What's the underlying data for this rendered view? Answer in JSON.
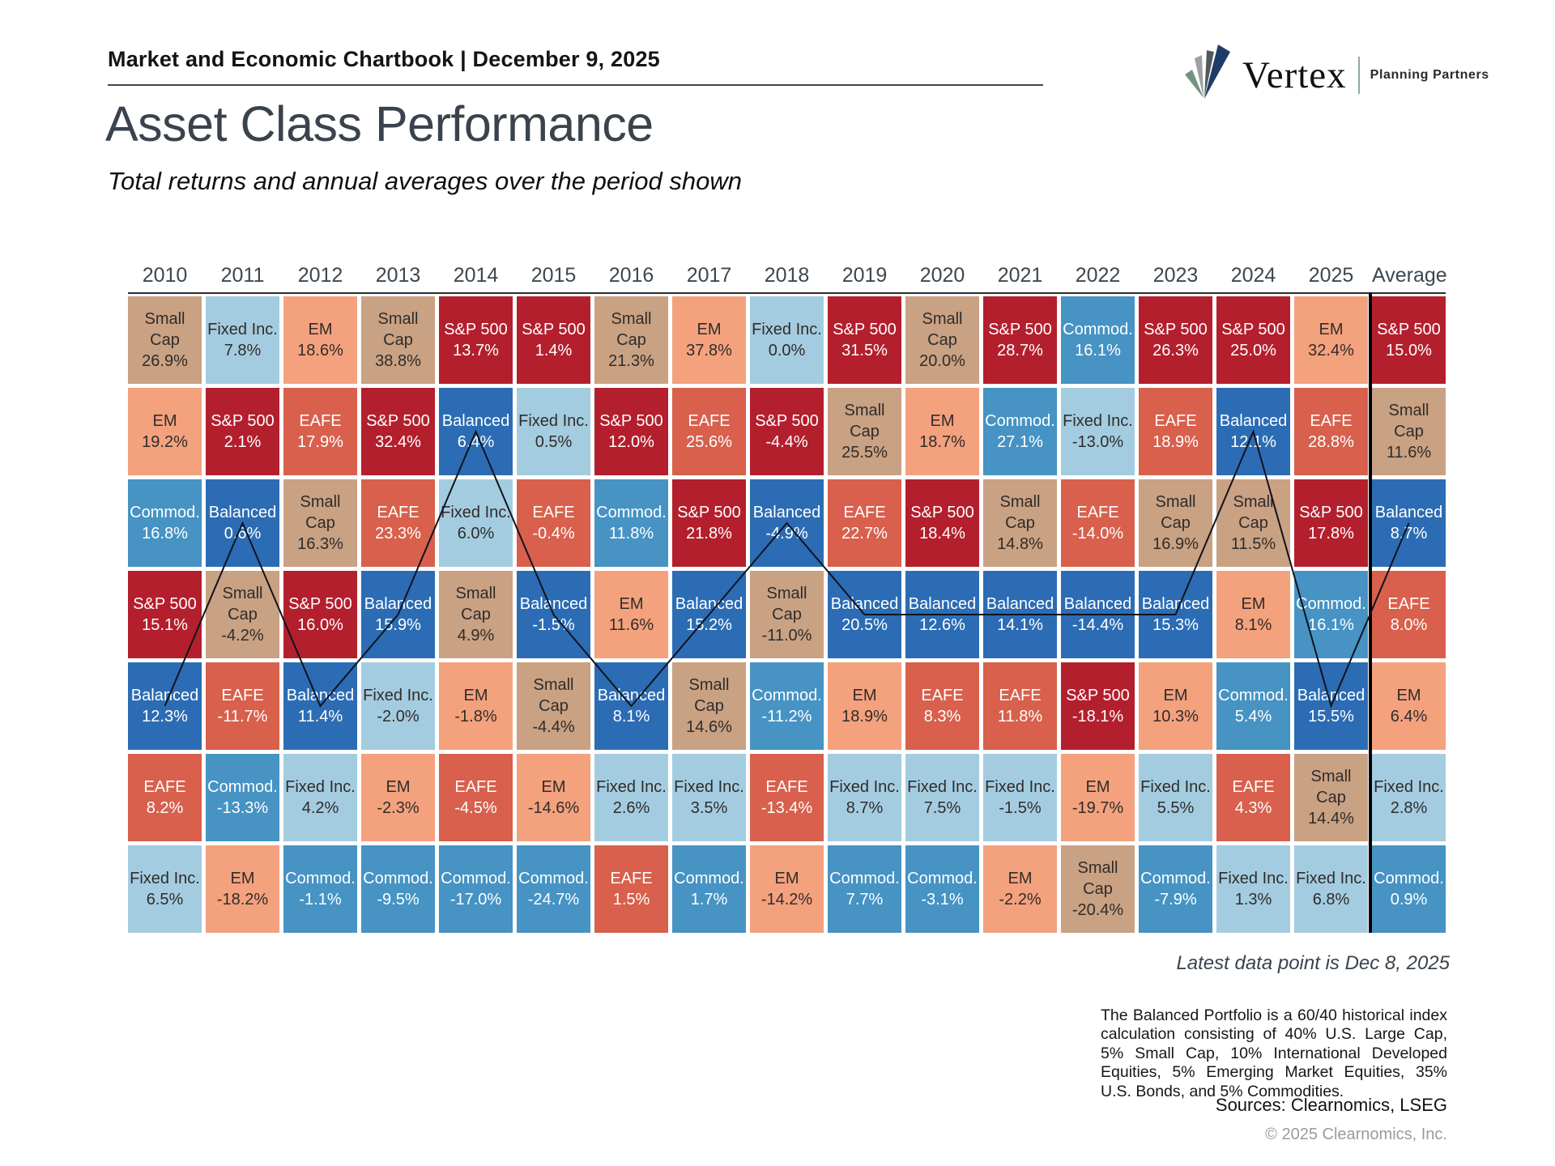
{
  "header": {
    "chartbook_title": "Market and Economic Chartbook | December 9, 2025"
  },
  "logo": {
    "brand": "Vertex",
    "tagline": "Planning Partners"
  },
  "page": {
    "title": "Asset Class Performance",
    "subtitle": "Total returns and annual averages over the period shown"
  },
  "chart_data": {
    "type": "table",
    "description": "Asset class total returns ranked best-to-worst per year, with a line tracing the Balanced portfolio",
    "columns": [
      "2010",
      "2011",
      "2012",
      "2013",
      "2014",
      "2015",
      "2016",
      "2017",
      "2018",
      "2019",
      "2020",
      "2021",
      "2022",
      "2023",
      "2024",
      "2025",
      "Average"
    ],
    "trace_asset": "Balanced",
    "asset_styles": {
      "S&P 500": {
        "bg": "#b41f2d",
        "text": "#ffffff"
      },
      "EAFE": {
        "bg": "#d8604c",
        "text": "#ffffff"
      },
      "EM": {
        "bg": "#f4a17e",
        "text": "#2f2d2a"
      },
      "Small Cap": {
        "bg": "#c9a183",
        "text": "#2f2d2a"
      },
      "Fixed Inc.": {
        "bg": "#a4cce1",
        "text": "#2f2d2a"
      },
      "Commod.": {
        "bg": "#4693c4",
        "text": "#ffffff"
      },
      "Balanced": {
        "bg": "#2c6cb4",
        "text": "#ffffff"
      }
    },
    "cells": [
      [
        {
          "asset": "Small Cap",
          "value": "26.9%"
        },
        {
          "asset": "EM",
          "value": "19.2%"
        },
        {
          "asset": "Commod.",
          "value": "16.8%"
        },
        {
          "asset": "S&P 500",
          "value": "15.1%"
        },
        {
          "asset": "Balanced",
          "value": "12.3%"
        },
        {
          "asset": "EAFE",
          "value": "8.2%"
        },
        {
          "asset": "Fixed Inc.",
          "value": "6.5%"
        }
      ],
      [
        {
          "asset": "Fixed Inc.",
          "value": "7.8%"
        },
        {
          "asset": "S&P 500",
          "value": "2.1%"
        },
        {
          "asset": "Balanced",
          "value": "0.6%"
        },
        {
          "asset": "Small Cap",
          "value": "-4.2%"
        },
        {
          "asset": "EAFE",
          "value": "-11.7%"
        },
        {
          "asset": "Commod.",
          "value": "-13.3%"
        },
        {
          "asset": "EM",
          "value": "-18.2%"
        }
      ],
      [
        {
          "asset": "EM",
          "value": "18.6%"
        },
        {
          "asset": "EAFE",
          "value": "17.9%"
        },
        {
          "asset": "Small Cap",
          "value": "16.3%"
        },
        {
          "asset": "S&P 500",
          "value": "16.0%"
        },
        {
          "asset": "Balanced",
          "value": "11.4%"
        },
        {
          "asset": "Fixed Inc.",
          "value": "4.2%"
        },
        {
          "asset": "Commod.",
          "value": "-1.1%"
        }
      ],
      [
        {
          "asset": "Small Cap",
          "value": "38.8%"
        },
        {
          "asset": "S&P 500",
          "value": "32.4%"
        },
        {
          "asset": "EAFE",
          "value": "23.3%"
        },
        {
          "asset": "Balanced",
          "value": "15.9%"
        },
        {
          "asset": "Fixed Inc.",
          "value": "-2.0%"
        },
        {
          "asset": "EM",
          "value": "-2.3%"
        },
        {
          "asset": "Commod.",
          "value": "-9.5%"
        }
      ],
      [
        {
          "asset": "S&P 500",
          "value": "13.7%"
        },
        {
          "asset": "Balanced",
          "value": "6.4%"
        },
        {
          "asset": "Fixed Inc.",
          "value": "6.0%"
        },
        {
          "asset": "Small Cap",
          "value": "4.9%"
        },
        {
          "asset": "EM",
          "value": "-1.8%"
        },
        {
          "asset": "EAFE",
          "value": "-4.5%"
        },
        {
          "asset": "Commod.",
          "value": "-17.0%"
        }
      ],
      [
        {
          "asset": "S&P 500",
          "value": "1.4%"
        },
        {
          "asset": "Fixed Inc.",
          "value": "0.5%"
        },
        {
          "asset": "EAFE",
          "value": "-0.4%"
        },
        {
          "asset": "Balanced",
          "value": "-1.5%"
        },
        {
          "asset": "Small Cap",
          "value": "-4.4%"
        },
        {
          "asset": "EM",
          "value": "-14.6%"
        },
        {
          "asset": "Commod.",
          "value": "-24.7%"
        }
      ],
      [
        {
          "asset": "Small Cap",
          "value": "21.3%"
        },
        {
          "asset": "S&P 500",
          "value": "12.0%"
        },
        {
          "asset": "Commod.",
          "value": "11.8%"
        },
        {
          "asset": "EM",
          "value": "11.6%"
        },
        {
          "asset": "Balanced",
          "value": "8.1%"
        },
        {
          "asset": "Fixed Inc.",
          "value": "2.6%"
        },
        {
          "asset": "EAFE",
          "value": "1.5%"
        }
      ],
      [
        {
          "asset": "EM",
          "value": "37.8%"
        },
        {
          "asset": "EAFE",
          "value": "25.6%"
        },
        {
          "asset": "S&P 500",
          "value": "21.8%"
        },
        {
          "asset": "Balanced",
          "value": "15.2%"
        },
        {
          "asset": "Small Cap",
          "value": "14.6%"
        },
        {
          "asset": "Fixed Inc.",
          "value": "3.5%"
        },
        {
          "asset": "Commod.",
          "value": "1.7%"
        }
      ],
      [
        {
          "asset": "Fixed Inc.",
          "value": "0.0%"
        },
        {
          "asset": "S&P 500",
          "value": "-4.4%"
        },
        {
          "asset": "Balanced",
          "value": "-4.9%"
        },
        {
          "asset": "Small Cap",
          "value": "-11.0%"
        },
        {
          "asset": "Commod.",
          "value": "-11.2%"
        },
        {
          "asset": "EAFE",
          "value": "-13.4%"
        },
        {
          "asset": "EM",
          "value": "-14.2%"
        }
      ],
      [
        {
          "asset": "S&P 500",
          "value": "31.5%"
        },
        {
          "asset": "Small Cap",
          "value": "25.5%"
        },
        {
          "asset": "EAFE",
          "value": "22.7%"
        },
        {
          "asset": "Balanced",
          "value": "20.5%"
        },
        {
          "asset": "EM",
          "value": "18.9%"
        },
        {
          "asset": "Fixed Inc.",
          "value": "8.7%"
        },
        {
          "asset": "Commod.",
          "value": "7.7%"
        }
      ],
      [
        {
          "asset": "Small Cap",
          "value": "20.0%"
        },
        {
          "asset": "EM",
          "value": "18.7%"
        },
        {
          "asset": "S&P 500",
          "value": "18.4%"
        },
        {
          "asset": "Balanced",
          "value": "12.6%"
        },
        {
          "asset": "EAFE",
          "value": "8.3%"
        },
        {
          "asset": "Fixed Inc.",
          "value": "7.5%"
        },
        {
          "asset": "Commod.",
          "value": "-3.1%"
        }
      ],
      [
        {
          "asset": "S&P 500",
          "value": "28.7%"
        },
        {
          "asset": "Commod.",
          "value": "27.1%"
        },
        {
          "asset": "Small Cap",
          "value": "14.8%"
        },
        {
          "asset": "Balanced",
          "value": "14.1%"
        },
        {
          "asset": "EAFE",
          "value": "11.8%"
        },
        {
          "asset": "Fixed Inc.",
          "value": "-1.5%"
        },
        {
          "asset": "EM",
          "value": "-2.2%"
        }
      ],
      [
        {
          "asset": "Commod.",
          "value": "16.1%"
        },
        {
          "asset": "Fixed Inc.",
          "value": "-13.0%"
        },
        {
          "asset": "EAFE",
          "value": "-14.0%"
        },
        {
          "asset": "Balanced",
          "value": "-14.4%"
        },
        {
          "asset": "S&P 500",
          "value": "-18.1%"
        },
        {
          "asset": "EM",
          "value": "-19.7%"
        },
        {
          "asset": "Small Cap",
          "value": "-20.4%"
        }
      ],
      [
        {
          "asset": "S&P 500",
          "value": "26.3%"
        },
        {
          "asset": "EAFE",
          "value": "18.9%"
        },
        {
          "asset": "Small Cap",
          "value": "16.9%"
        },
        {
          "asset": "Balanced",
          "value": "15.3%"
        },
        {
          "asset": "EM",
          "value": "10.3%"
        },
        {
          "asset": "Fixed Inc.",
          "value": "5.5%"
        },
        {
          "asset": "Commod.",
          "value": "-7.9%"
        }
      ],
      [
        {
          "asset": "S&P 500",
          "value": "25.0%"
        },
        {
          "asset": "Balanced",
          "value": "12.1%"
        },
        {
          "asset": "Small Cap",
          "value": "11.5%"
        },
        {
          "asset": "EM",
          "value": "8.1%"
        },
        {
          "asset": "Commod.",
          "value": "5.4%"
        },
        {
          "asset": "EAFE",
          "value": "4.3%"
        },
        {
          "asset": "Fixed Inc.",
          "value": "1.3%"
        }
      ],
      [
        {
          "asset": "EM",
          "value": "32.4%"
        },
        {
          "asset": "EAFE",
          "value": "28.8%"
        },
        {
          "asset": "S&P 500",
          "value": "17.8%"
        },
        {
          "asset": "Commod.",
          "value": "16.1%"
        },
        {
          "asset": "Balanced",
          "value": "15.5%"
        },
        {
          "asset": "Small Cap",
          "value": "14.4%"
        },
        {
          "asset": "Fixed Inc.",
          "value": "6.8%"
        }
      ],
      [
        {
          "asset": "S&P 500",
          "value": "15.0%"
        },
        {
          "asset": "Small Cap",
          "value": "11.6%"
        },
        {
          "asset": "Balanced",
          "value": "8.7%"
        },
        {
          "asset": "EAFE",
          "value": "8.0%"
        },
        {
          "asset": "EM",
          "value": "6.4%"
        },
        {
          "asset": "Fixed Inc.",
          "value": "2.8%"
        },
        {
          "asset": "Commod.",
          "value": "0.9%"
        }
      ]
    ]
  },
  "footer": {
    "latest_data_note": "Latest data point is Dec 8, 2025",
    "balanced_note": "The Balanced Portfolio is a 60/40 historical index calculation consisting of 40% U.S. Large Cap, 5% Small Cap, 10% International Developed Equities, 5% Emerging Market Equities, 35% U.S. Bonds, and 5% Commodities.",
    "sources": "Sources: Clearnomics, LSEG",
    "copyright": "© 2025 Clearnomics, Inc."
  }
}
